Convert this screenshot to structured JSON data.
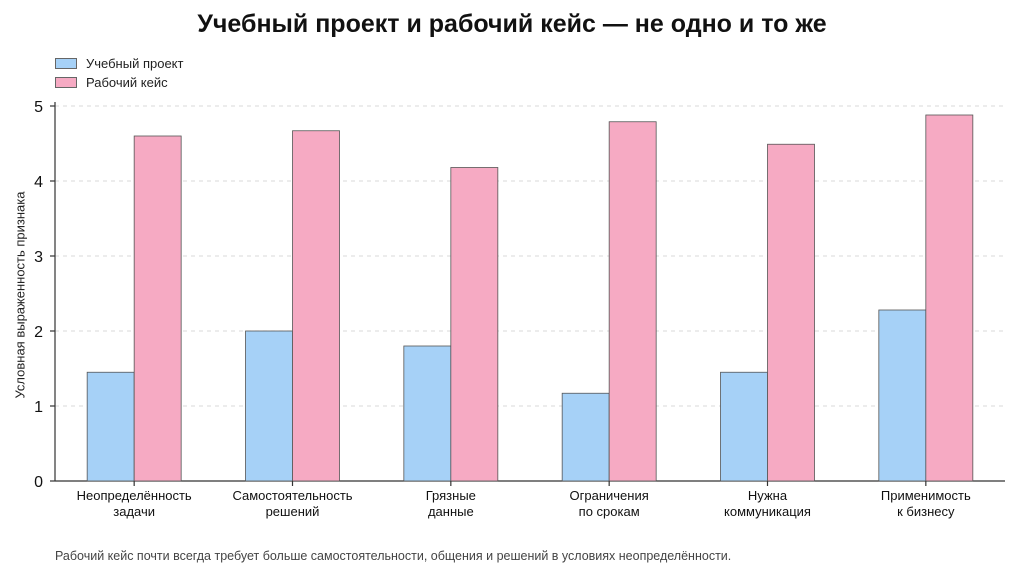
{
  "chart_data": {
    "type": "bar",
    "title": "Учебный проект и рабочий кейс — не одно и то же",
    "xlabel": "",
    "ylabel": "Условная выраженность признака",
    "ylim": [
      0,
      5
    ],
    "yticks": [
      "0",
      "1",
      "2",
      "3",
      "4",
      "5"
    ],
    "grid": true,
    "legend_position": "top-left",
    "categories": [
      [
        "Неопределённость",
        "задачи"
      ],
      [
        "Самостоятельность",
        "решений"
      ],
      [
        "Грязные",
        "данные"
      ],
      [
        "Ограничения",
        "по срокам"
      ],
      [
        "Нужна",
        "коммуникация"
      ],
      [
        "Применимость",
        "к бизнесу"
      ]
    ],
    "series": [
      {
        "name": "Учебный проект",
        "color": "#a6d1f7",
        "values": [
          1.45,
          2.0,
          1.8,
          1.17,
          1.45,
          2.28
        ]
      },
      {
        "name": "Рабочий кейс",
        "color": "#f6aac3",
        "values": [
          4.6,
          4.67,
          4.18,
          4.79,
          4.49,
          4.88
        ]
      }
    ],
    "footnote": "Рабочий кейс почти всегда требует больше самостоятельности, общения и решений в условиях неопределённости."
  }
}
